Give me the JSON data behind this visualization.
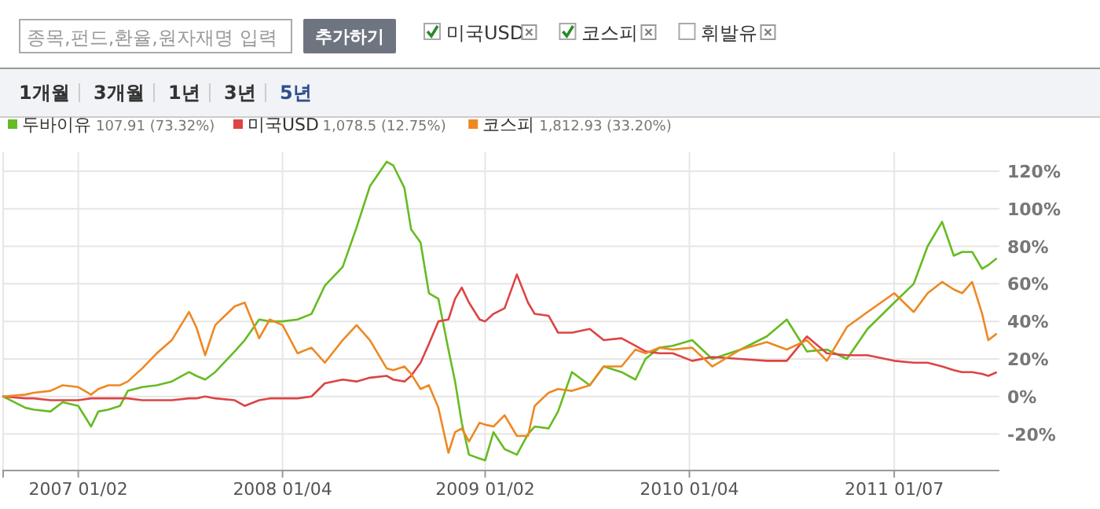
{
  "chart_data": {
    "type": "line",
    "legend": "top left",
    "grid": true,
    "marker": "none",
    "line_style": "solid",
    "annotations": [
      "종목,펀드,환율,원자재명 입력",
      "추가하기",
      "미국USD",
      "코스피",
      "휘발유",
      "1개월",
      "3개월",
      "1년",
      "3년",
      "5년",
      "107.91 (73.32%)",
      "1,078.5 (12.75%)",
      "1,812.93 (33.20%)"
    ],
    "x": [
      "2006-08-20",
      "2006-09-29",
      "2006-10-14",
      "2006-11-13",
      "2006-12-05",
      "2007-01-02",
      "2007-01-25",
      "2007-02-07",
      "2007-02-25",
      "2007-03-18",
      "2007-04-01",
      "2007-04-27",
      "2007-05-23",
      "2007-06-19",
      "2007-07-20",
      "2007-08-02",
      "2007-08-18",
      "2007-09-05",
      "2007-10-10",
      "2007-10-28",
      "2007-11-23",
      "2007-12-12",
      "2008-01-04",
      "2008-01-31",
      "2008-02-25",
      "2008-03-20",
      "2008-04-21",
      "2008-05-16",
      "2008-06-09",
      "2008-07-09",
      "2008-07-21",
      "2008-08-10",
      "2008-08-22",
      "2008-09-08",
      "2008-09-23",
      "2008-10-10",
      "2008-10-28",
      "2008-11-09",
      "2008-11-21",
      "2008-12-04",
      "2008-12-23",
      "2009-01-02",
      "2009-01-17",
      "2009-02-06",
      "2009-02-28",
      "2009-03-20",
      "2009-04-01",
      "2009-04-26",
      "2009-05-13",
      "2009-06-07",
      "2009-07-09",
      "2009-08-03",
      "2009-09-04",
      "2009-09-29",
      "2009-10-17",
      "2009-11-11",
      "2009-12-05",
      "2010-01-09",
      "2010-02-14",
      "2010-04-06",
      "2010-05-23",
      "2010-06-28",
      "2010-08-03",
      "2010-09-08",
      "2010-10-14",
      "2010-11-20",
      "2011-01-07",
      "2011-02-11",
      "2011-03-08",
      "2011-04-03",
      "2011-04-24",
      "2011-05-09",
      "2011-05-27",
      "2011-06-14",
      "2011-06-25",
      "2011-07-09"
    ],
    "xlim": [
      "2006-08-20",
      "2011-07-15"
    ],
    "xticks": [
      {
        "value": "2007-01-02",
        "label": "2007 01/02"
      },
      {
        "value": "2008-01-04",
        "label": "2008 01/04"
      },
      {
        "value": "2009-01-02",
        "label": "2009 01/02"
      },
      {
        "value": "2010-01-04",
        "label": "2010 01/04"
      },
      {
        "value": "2011-01-07",
        "label": "2011 01/07"
      }
    ],
    "ylim": [
      -39,
      130
    ],
    "yticks": [
      {
        "value": -20,
        "label": "-20%"
      },
      {
        "value": 0,
        "label": "0%"
      },
      {
        "value": 20,
        "label": "20%"
      },
      {
        "value": 40,
        "label": "40%"
      },
      {
        "value": 60,
        "label": "60%"
      },
      {
        "value": 80,
        "label": "80%"
      },
      {
        "value": 100,
        "label": "100%"
      },
      {
        "value": 120,
        "label": "120%"
      }
    ],
    "series": [
      {
        "name": "두바이유",
        "color": "#66bb22",
        "values": [
          0,
          -6,
          -7,
          -8,
          -3,
          -5,
          -16,
          -8,
          -7,
          -5,
          3,
          5,
          6,
          8,
          13,
          11,
          9,
          13,
          24,
          30,
          41,
          40,
          40,
          41,
          44,
          59,
          69,
          90,
          112,
          125,
          123,
          111,
          89,
          82,
          55,
          52,
          25,
          8,
          -14,
          -31,
          -33,
          -34,
          -19,
          -28,
          -31,
          -20,
          -16,
          -17,
          -8,
          13,
          6,
          16,
          13,
          9,
          20,
          26,
          27,
          30,
          20,
          25,
          32,
          41,
          24,
          25,
          20,
          36,
          50,
          60,
          80,
          93,
          75,
          77,
          77,
          68,
          70,
          73.32
        ]
      },
      {
        "name": "미국USD",
        "color": "#dd4444",
        "values": [
          0,
          -1,
          -1,
          -2,
          -2,
          -2,
          -1,
          -1,
          -1,
          -1,
          -1,
          -2,
          -2,
          -2,
          -1,
          -1,
          0,
          -1,
          -2,
          -5,
          -2,
          -1,
          -1,
          -1,
          0,
          7,
          9,
          8,
          10,
          11,
          9,
          8,
          11,
          18,
          28,
          40,
          41,
          52,
          58,
          50,
          41,
          40,
          44,
          47,
          65,
          50,
          44,
          43,
          34,
          34,
          36,
          30,
          31,
          27,
          24,
          23,
          23,
          19,
          21,
          20,
          19,
          19,
          32,
          23,
          22,
          22,
          19,
          18,
          18,
          16,
          14,
          13,
          13,
          12,
          11,
          12.75
        ]
      },
      {
        "name": "코스피",
        "color": "#ee8822",
        "values": [
          0,
          1,
          2,
          3,
          6,
          5,
          1,
          4,
          6,
          6,
          8,
          15,
          23,
          30,
          45,
          37,
          22,
          38,
          48,
          50,
          31,
          41,
          38,
          23,
          26,
          18,
          30,
          38,
          30,
          15,
          14,
          16,
          12,
          4,
          6,
          -6,
          -30,
          -19,
          -17,
          -24,
          -14,
          -15,
          -16,
          -10,
          -21,
          -21,
          -5,
          2,
          4,
          3,
          6,
          16,
          16,
          25,
          23,
          26,
          25,
          26,
          16,
          25,
          29,
          25,
          30,
          19,
          37,
          45,
          55,
          45,
          55,
          61,
          57,
          55,
          61,
          44,
          30,
          33.2
        ]
      }
    ]
  }
}
